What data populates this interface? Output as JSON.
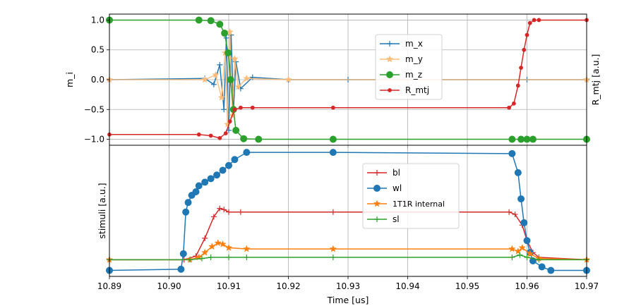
{
  "chart_data": [
    {
      "type": "line",
      "panel": "top",
      "xlim": [
        10.89,
        10.97
      ],
      "ylim": [
        -1.1,
        1.1
      ],
      "ylabel": "m_i",
      "ylabel_right": "R_mtj [a.u.]",
      "grid": true,
      "legend_position": "upper-center",
      "yticks": [
        "1.0",
        "0.5",
        "0.0",
        "−0.5",
        "−1.0"
      ],
      "ytick_values": [
        1.0,
        0.5,
        0.0,
        -0.5,
        -1.0
      ],
      "series": [
        {
          "name": "m_x",
          "color": "#1f77b4",
          "marker": "plus",
          "x": [
            10.89,
            10.906,
            10.9075,
            10.9085,
            10.9092,
            10.9096,
            10.91,
            10.9104,
            10.9108,
            10.9112,
            10.912,
            10.914,
            10.92,
            10.93,
            10.96,
            10.97
          ],
          "y": [
            0.0,
            0.02,
            -0.08,
            0.25,
            -0.5,
            0.7,
            -0.85,
            0.75,
            -0.5,
            0.3,
            -0.15,
            0.04,
            0.0,
            0.0,
            0.0,
            0.0
          ]
        },
        {
          "name": "m_y",
          "color": "#ffbb78",
          "marker": "star",
          "x": [
            10.89,
            10.906,
            10.9078,
            10.9088,
            10.9094,
            10.9098,
            10.9102,
            10.9106,
            10.911,
            10.9116,
            10.913,
            10.92,
            10.97
          ],
          "y": [
            0.0,
            0.0,
            0.08,
            -0.3,
            0.45,
            -0.75,
            0.8,
            -0.6,
            0.35,
            -0.12,
            0.02,
            0.0,
            0.0
          ]
        },
        {
          "name": "m_z",
          "color": "#2ca02c",
          "marker": "circle",
          "x": [
            10.89,
            10.905,
            10.907,
            10.9085,
            10.9093,
            10.9099,
            10.9103,
            10.9108,
            10.9112,
            10.9125,
            10.915,
            10.9275,
            10.9575,
            10.959,
            10.96,
            10.961,
            10.97
          ],
          "y": [
            1.0,
            1.0,
            0.99,
            0.93,
            0.78,
            0.45,
            0.0,
            -0.5,
            -0.85,
            -0.99,
            -1.0,
            -1.0,
            -1.0,
            -1.0,
            -1.0,
            -1.0,
            -1.0
          ]
        },
        {
          "name": "R_mtj",
          "color": "#d62728",
          "marker": "dot",
          "x": [
            10.89,
            10.905,
            10.907,
            10.9085,
            10.9095,
            10.9102,
            10.911,
            10.912,
            10.914,
            10.9275,
            10.957,
            10.9578,
            10.9585,
            10.959,
            10.9595,
            10.96,
            10.9605,
            10.9612,
            10.962,
            10.97
          ],
          "y": [
            -0.92,
            -0.92,
            -0.94,
            -0.98,
            -0.9,
            -0.7,
            -0.5,
            -0.47,
            -0.47,
            -0.47,
            -0.47,
            -0.4,
            -0.1,
            0.2,
            0.5,
            0.75,
            0.95,
            1.0,
            1.0,
            1.0
          ]
        }
      ]
    },
    {
      "type": "line",
      "panel": "bottom",
      "xlim": [
        10.89,
        10.97
      ],
      "ylim": [
        -0.05,
        1.05
      ],
      "xlabel": "Time [us]",
      "ylabel": "stimuli [a.u.]",
      "grid": true,
      "legend_position": "upper-center",
      "xticks": [
        "10.89",
        "10.90",
        "10.91",
        "10.92",
        "10.93",
        "10.94",
        "10.95",
        "10.96",
        "10.97"
      ],
      "xtick_values": [
        10.89,
        10.9,
        10.91,
        10.92,
        10.93,
        10.94,
        10.95,
        10.96,
        10.97
      ],
      "series": [
        {
          "name": "bl",
          "color": "#d62728",
          "marker": "plus",
          "x": [
            10.89,
            10.9025,
            10.9045,
            10.906,
            10.9075,
            10.9085,
            10.9092,
            10.91,
            10.912,
            10.9275,
            10.957,
            10.958,
            10.9592,
            10.96,
            10.961,
            10.962,
            10.97
          ],
          "y": [
            0.09,
            0.09,
            0.12,
            0.27,
            0.45,
            0.52,
            0.51,
            0.49,
            0.49,
            0.49,
            0.49,
            0.47,
            0.38,
            0.25,
            0.15,
            0.11,
            0.09
          ]
        },
        {
          "name": "wl",
          "color": "#1f77b4",
          "marker": "circle",
          "x": [
            10.89,
            10.902,
            10.9024,
            10.9028,
            10.9032,
            10.9038,
            10.9045,
            10.905,
            10.906,
            10.907,
            10.908,
            10.909,
            10.91,
            10.911,
            10.913,
            10.9275,
            10.9575,
            10.9585,
            10.959,
            10.9595,
            10.96,
            10.9605,
            10.961,
            10.9625,
            10.964,
            10.97
          ],
          "y": [
            0.0,
            0.01,
            0.14,
            0.49,
            0.57,
            0.63,
            0.66,
            0.71,
            0.74,
            0.77,
            0.8,
            0.84,
            0.88,
            0.93,
            0.99,
            0.99,
            0.98,
            0.82,
            0.6,
            0.4,
            0.25,
            0.15,
            0.08,
            0.03,
            0.0,
            0.0
          ]
        },
        {
          "name": "1T1R internal",
          "color": "#ff7f0e",
          "marker": "star",
          "x": [
            10.89,
            10.9035,
            10.905,
            10.906,
            10.9072,
            10.9082,
            10.909,
            10.91,
            10.913,
            10.9275,
            10.9575,
            10.9585,
            10.9592,
            10.9605,
            10.962,
            10.97
          ],
          "y": [
            0.09,
            0.09,
            0.11,
            0.15,
            0.2,
            0.23,
            0.22,
            0.19,
            0.18,
            0.18,
            0.18,
            0.16,
            0.19,
            0.14,
            0.1,
            0.09
          ]
        },
        {
          "name": "sl",
          "color": "#2ca02c",
          "marker": "plus",
          "x": [
            10.89,
            10.9035,
            10.9055,
            10.907,
            10.91,
            10.913,
            10.9275,
            10.9575,
            10.9588,
            10.96,
            10.962,
            10.97
          ],
          "y": [
            0.09,
            0.09,
            0.1,
            0.11,
            0.11,
            0.11,
            0.11,
            0.11,
            0.13,
            0.11,
            0.09,
            0.09
          ]
        }
      ]
    }
  ]
}
